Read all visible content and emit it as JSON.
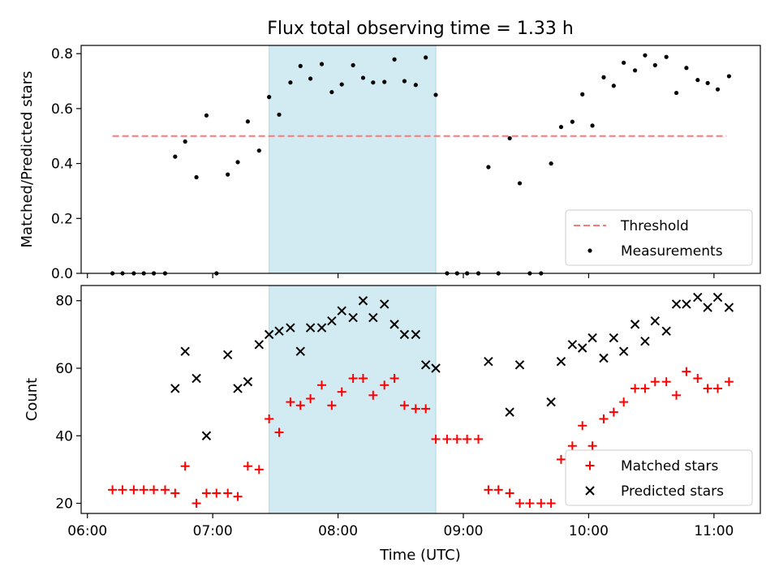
{
  "title": "Flux total observing time = 1.33 h",
  "xlabel": "Time (UTC)",
  "x_ticks": [
    "06:00",
    "07:00",
    "08:00",
    "09:00",
    "10:00",
    "11:00"
  ],
  "x_tick_hours": [
    6,
    7,
    8,
    9,
    10,
    11
  ],
  "colors": {
    "threshold": "#ff7777",
    "measurements": "#000000",
    "matched": "#ff0000",
    "predicted": "#000000",
    "span": "#add8e6"
  },
  "chart_data": [
    {
      "type": "scatter",
      "ylabel": "Matched/Predicted stars",
      "ylim": [
        0,
        0.83
      ],
      "xlim_hours": [
        5.95,
        11.37
      ],
      "y_ticks": [
        "0.0",
        "0.2",
        "0.4",
        "0.6",
        "0.8"
      ],
      "y_tick_values": [
        0,
        0.2,
        0.4,
        0.6,
        0.8
      ],
      "observing_window_hours": [
        7.45,
        8.78
      ],
      "threshold": {
        "value": 0.5,
        "x_range_hours": [
          6.2,
          11.1
        ]
      },
      "legend": {
        "position": "lower-right",
        "entries": [
          "Threshold",
          "Measurements"
        ]
      },
      "series": [
        {
          "name": "Measurements",
          "x_hours": [
            6.2,
            6.28,
            6.37,
            6.45,
            6.53,
            6.62,
            6.7,
            6.78,
            6.87,
            6.95,
            7.03,
            7.12,
            7.2,
            7.28,
            7.37,
            7.45,
            7.53,
            7.62,
            7.7,
            7.78,
            7.87,
            7.95,
            8.03,
            8.12,
            8.2,
            8.28,
            8.37,
            8.45,
            8.53,
            8.62,
            8.7,
            8.78,
            8.87,
            8.95,
            9.03,
            9.12,
            9.2,
            9.28,
            9.37,
            9.45,
            9.53,
            9.62,
            9.7,
            9.78,
            9.87,
            9.95,
            10.03,
            10.12,
            10.2,
            10.28,
            10.37,
            10.45,
            10.53,
            10.62,
            10.7,
            10.78,
            10.87,
            10.95,
            11.03,
            11.12
          ],
          "values": [
            0,
            0,
            0,
            0,
            0,
            0,
            0.425,
            0.48,
            0.35,
            0.575,
            0,
            0.36,
            0.405,
            0.553,
            0.447,
            0.642,
            0.578,
            0.695,
            0.755,
            0.709,
            0.762,
            0.66,
            0.688,
            0.758,
            0.712,
            0.695,
            0.697,
            0.779,
            0.7,
            0.686,
            0.786,
            0.65,
            0,
            0,
            0,
            0,
            0.387,
            0,
            0.492,
            0.328,
            0,
            0,
            0.4,
            0.533,
            0.552,
            0.652,
            0.538,
            0.714,
            0.683,
            0.767,
            0.739,
            0.794,
            0.758,
            0.788,
            0.657,
            0.748,
            0.704,
            0.693,
            0.67,
            0.718
          ]
        }
      ]
    },
    {
      "type": "scatter",
      "ylabel": "Count",
      "ylim": [
        17,
        84.5
      ],
      "xlim_hours": [
        5.95,
        11.37
      ],
      "y_ticks": [
        "20",
        "40",
        "60",
        "80"
      ],
      "y_tick_values": [
        20,
        40,
        60,
        80
      ],
      "observing_window_hours": [
        7.45,
        8.78
      ],
      "legend": {
        "position": "lower-right",
        "entries": [
          "Matched stars",
          "Predicted stars"
        ]
      },
      "series": [
        {
          "name": "Matched stars",
          "marker": "plus",
          "x_hours": [
            6.2,
            6.28,
            6.37,
            6.45,
            6.53,
            6.62,
            6.7,
            6.78,
            6.87,
            6.95,
            7.03,
            7.12,
            7.2,
            7.28,
            7.37,
            7.45,
            7.53,
            7.62,
            7.7,
            7.78,
            7.87,
            7.95,
            8.03,
            8.12,
            8.2,
            8.28,
            8.37,
            8.45,
            8.53,
            8.62,
            8.7,
            8.78,
            8.87,
            8.95,
            9.03,
            9.12,
            9.2,
            9.28,
            9.37,
            9.45,
            9.53,
            9.62,
            9.7,
            9.78,
            9.87,
            9.95,
            10.03,
            10.12,
            10.2,
            10.28,
            10.37,
            10.45,
            10.53,
            10.62,
            10.7,
            10.78,
            10.87,
            10.95,
            11.03,
            11.12
          ],
          "values": [
            24,
            24,
            24,
            24,
            24,
            24,
            23,
            31,
            20,
            23,
            23,
            23,
            22,
            31,
            30,
            45,
            41,
            50,
            49,
            51,
            55,
            49,
            53,
            57,
            57,
            52,
            55,
            57,
            49,
            48,
            48,
            39,
            39,
            39,
            39,
            39,
            24,
            24,
            23,
            20,
            20,
            20,
            20,
            33,
            37,
            43,
            37,
            45,
            47,
            50,
            54,
            54,
            56,
            56,
            52,
            59,
            57,
            54,
            54,
            56
          ]
        },
        {
          "name": "Predicted stars",
          "marker": "x",
          "x_hours": [
            6.7,
            6.78,
            6.87,
            6.95,
            7.12,
            7.2,
            7.28,
            7.37,
            7.45,
            7.53,
            7.62,
            7.7,
            7.78,
            7.87,
            7.95,
            8.03,
            8.12,
            8.2,
            8.28,
            8.37,
            8.45,
            8.53,
            8.62,
            8.7,
            8.78,
            9.2,
            9.37,
            9.45,
            9.7,
            9.78,
            9.87,
            9.95,
            10.03,
            10.12,
            10.2,
            10.28,
            10.37,
            10.45,
            10.53,
            10.62,
            10.7,
            10.78,
            10.87,
            10.95,
            11.03,
            11.12
          ],
          "values": [
            54,
            65,
            57,
            40,
            64,
            54,
            56,
            67,
            70,
            71,
            72,
            65,
            72,
            72,
            74,
            77,
            75,
            80,
            75,
            79,
            73,
            70,
            70,
            61,
            60,
            62,
            47,
            61,
            50,
            62,
            67,
            66,
            69,
            63,
            69,
            65,
            73,
            68,
            74,
            71,
            79,
            79,
            81,
            78,
            81,
            78
          ]
        }
      ]
    }
  ]
}
